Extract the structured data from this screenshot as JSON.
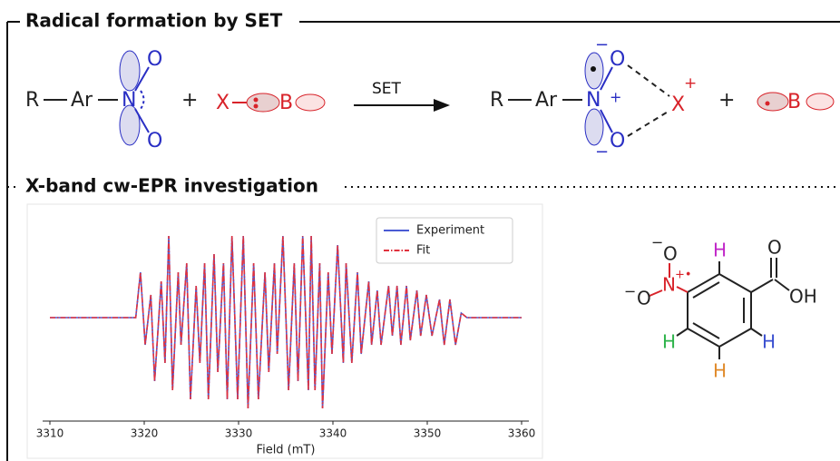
{
  "headings": [
    "Radical formation by SET",
    "X-band cw-EPR investigation"
  ],
  "scheme": {
    "reactant": [
      "R",
      "Ar",
      "N",
      "O",
      "O"
    ],
    "plus": "+",
    "reagent": [
      "X",
      "B"
    ],
    "arrow_label": "SET",
    "product": [
      "R",
      "Ar",
      "N",
      "+",
      "O",
      "O",
      "−",
      "−",
      "X",
      "+"
    ],
    "byproduct": [
      "+",
      "B"
    ]
  },
  "molecule": {
    "atoms": [
      "O",
      "−",
      "N",
      "+•",
      "O",
      "−",
      "H",
      "O",
      "OH",
      "H",
      "H",
      "H"
    ]
  },
  "chart_data": {
    "type": "line",
    "xlabel": "Field (mT)",
    "x": [
      3310,
      3319.1,
      3319.6,
      3320.1,
      3320.7,
      3321.1,
      3321.8,
      3322.2,
      3322.6,
      3323.0,
      3323.6,
      3323.9,
      3324.5,
      3324.9,
      3325.5,
      3325.9,
      3326.4,
      3326.8,
      3327.4,
      3327.8,
      3328.4,
      3328.8,
      3329.3,
      3329.9,
      3330.5,
      3331.0,
      3331.6,
      3332.1,
      3332.8,
      3333.2,
      3333.8,
      3334.1,
      3334.7,
      3335.3,
      3335.9,
      3336.3,
      3336.8,
      3337.4,
      3337.7,
      3338.1,
      3338.6,
      3338.9,
      3339.5,
      3339.9,
      3340.5,
      3341.1,
      3341.4,
      3342.0,
      3342.6,
      3343.0,
      3343.8,
      3344.1,
      3344.7,
      3345.1,
      3345.9,
      3346.3,
      3346.8,
      3347.2,
      3347.8,
      3348.2,
      3348.9,
      3349.3,
      3349.9,
      3350.5,
      3351.3,
      3351.8,
      3352.4,
      3353.0,
      3353.6,
      3354.2,
      3360
    ],
    "series": [
      {
        "name": "Experiment",
        "color": "#4a5bd4",
        "dash": "solid",
        "values": [
          0,
          0,
          0.5,
          -0.3,
          0.25,
          -0.7,
          0.4,
          -0.5,
          0.9,
          -0.8,
          0.5,
          -0.3,
          0.6,
          -0.9,
          0.35,
          -0.5,
          0.6,
          -0.9,
          0.7,
          -0.6,
          0.6,
          -0.9,
          0.9,
          -0.9,
          0.9,
          -1.0,
          0.6,
          -0.9,
          0.5,
          -0.6,
          0.6,
          -0.4,
          0.9,
          -0.8,
          0.6,
          -0.7,
          0.9,
          -0.8,
          0.9,
          -0.8,
          0.6,
          -1.0,
          0.5,
          -0.4,
          0.8,
          -0.5,
          0.6,
          -0.5,
          0.5,
          -0.4,
          0.4,
          -0.3,
          0.3,
          -0.3,
          0.35,
          -0.2,
          0.35,
          -0.3,
          0.35,
          -0.25,
          0.3,
          -0.2,
          0.25,
          -0.2,
          0.2,
          -0.3,
          0.2,
          -0.3,
          0.05,
          0,
          0
        ]
      },
      {
        "name": "Fit",
        "color": "#e0323e",
        "dash": "dashdot",
        "values": [
          0,
          0,
          0.5,
          -0.3,
          0.25,
          -0.7,
          0.4,
          -0.5,
          0.9,
          -0.8,
          0.5,
          -0.3,
          0.6,
          -0.9,
          0.35,
          -0.5,
          0.6,
          -0.9,
          0.7,
          -0.6,
          0.6,
          -0.9,
          0.9,
          -0.9,
          0.9,
          -1.0,
          0.6,
          -0.9,
          0.5,
          -0.6,
          0.6,
          -0.4,
          0.9,
          -0.8,
          0.6,
          -0.7,
          0.9,
          -0.8,
          0.9,
          -0.8,
          0.6,
          -1.0,
          0.5,
          -0.4,
          0.8,
          -0.5,
          0.6,
          -0.5,
          0.5,
          -0.4,
          0.4,
          -0.3,
          0.3,
          -0.3,
          0.35,
          -0.2,
          0.35,
          -0.3,
          0.35,
          -0.25,
          0.3,
          -0.2,
          0.25,
          -0.2,
          0.2,
          -0.3,
          0.2,
          -0.3,
          0.05,
          0,
          0
        ]
      }
    ],
    "xlim": [
      3310,
      3360
    ],
    "ylim": [
      -1.1,
      1.1
    ],
    "xticks": [
      3310,
      3320,
      3330,
      3340,
      3350,
      3360
    ],
    "legend": "upper right"
  }
}
